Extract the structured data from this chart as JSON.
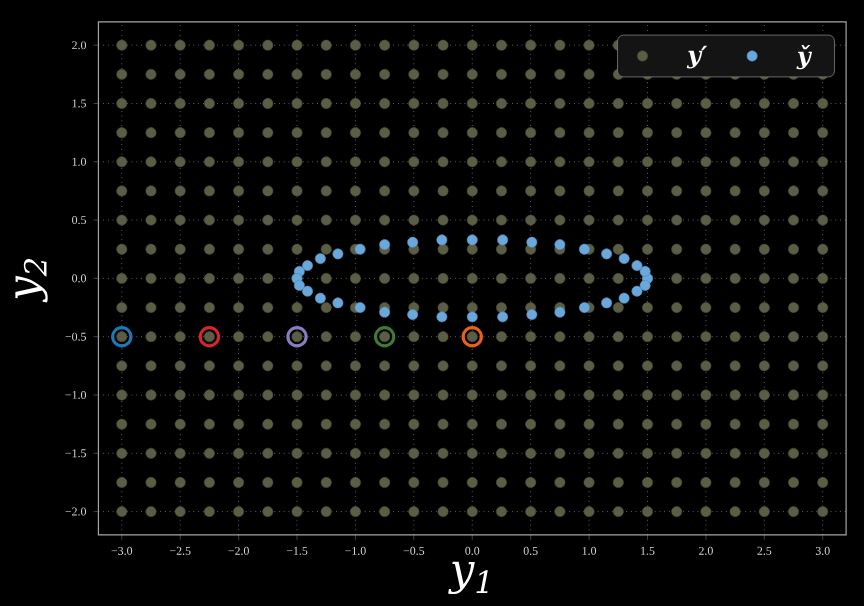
{
  "chart_data": {
    "type": "scatter",
    "xlabel": "y$_{1}$",
    "ylabel": "y$_{2}$",
    "xlim": [
      -3.2,
      3.2
    ],
    "ylim": [
      -2.2,
      2.2
    ],
    "xticks": [
      {
        "value": -3,
        "label": "−3.0"
      },
      {
        "value": -2.5,
        "label": "−2.5"
      },
      {
        "value": -2,
        "label": "−2.0"
      },
      {
        "value": -1.5,
        "label": "−1.5"
      },
      {
        "value": -1,
        "label": "−1.0"
      },
      {
        "value": -0.5,
        "label": "−0.5"
      },
      {
        "value": 0,
        "label": "0.0"
      },
      {
        "value": 0.5,
        "label": "0.5"
      },
      {
        "value": 1,
        "label": "1.0"
      },
      {
        "value": 1.5,
        "label": "1.5"
      },
      {
        "value": 2,
        "label": "2.0"
      },
      {
        "value": 2.5,
        "label": "2.5"
      },
      {
        "value": 3,
        "label": "3.0"
      }
    ],
    "yticks": [
      {
        "value": -2,
        "label": "−2.0"
      },
      {
        "value": -1.5,
        "label": "−1.5"
      },
      {
        "value": -1,
        "label": "−1.0"
      },
      {
        "value": -0.5,
        "label": "−0.5"
      },
      {
        "value": 0,
        "label": "0.0"
      },
      {
        "value": 0.5,
        "label": "0.5"
      },
      {
        "value": 1,
        "label": "1.0"
      },
      {
        "value": 1.5,
        "label": "1.5"
      },
      {
        "value": 2,
        "label": "2.0"
      }
    ],
    "grid": true,
    "legend": "top right",
    "marker": "circle",
    "series": [
      {
        "name": "y′",
        "color": "#5b5d45",
        "x": [
          -3,
          -2.75,
          -2.5,
          -2.25,
          -2,
          -1.75,
          -1.5,
          -1.25,
          -1,
          -0.75,
          -0.5,
          -0.25,
          0,
          0.25,
          0.5,
          0.75,
          1,
          1.25,
          -3,
          -2.75,
          -2.5,
          -2.25,
          -2,
          -1.75,
          -1.5,
          -1.25,
          -1,
          -0.75,
          -0.5,
          -0.25,
          0,
          0.25,
          0.5,
          0.75,
          1,
          1.25,
          1.5,
          1.75,
          2,
          2.25,
          2.5,
          2.75,
          3,
          -3,
          -2.75,
          -2.5,
          -2.25,
          -2,
          -1.75,
          -1.5,
          -1.25,
          -1,
          -0.75,
          -0.5,
          -0.25,
          0,
          0.25,
          0.5,
          0.75,
          1,
          1.25,
          1.5,
          1.75,
          2,
          2.25,
          2.5,
          2.75,
          3,
          -3,
          -2.75,
          -2.5,
          -2.25,
          -2,
          -1.75,
          -1.5,
          -1.25,
          -1,
          -0.75,
          -0.5,
          -0.25,
          0,
          0.25,
          0.5,
          0.75,
          1,
          1.25,
          1.5,
          1.75,
          2,
          2.25,
          2.5,
          2.75,
          3,
          -3,
          -2.75,
          -2.5,
          -2.25,
          -2,
          -1.75,
          -1.5,
          -1.25,
          -1,
          -0.75,
          -0.5,
          -0.25,
          0,
          0.25,
          0.5,
          0.75,
          1,
          1.25,
          1.5,
          1.75,
          2,
          2.25,
          2.5,
          2.75,
          3,
          -3,
          -2.75,
          -2.5,
          -2.25,
          -2,
          -1.75,
          -1.5,
          -1.25,
          -1,
          -0.75,
          -0.5,
          -0.25,
          0,
          0.25,
          0.5,
          0.75,
          1,
          1.25,
          1.5,
          1.75,
          2,
          2.25,
          2.5,
          2.75,
          3,
          -3,
          -2.75,
          -2.5,
          -2.25,
          -2,
          -1.75,
          -1.5,
          -1.25,
          -1,
          -0.75,
          -0.5,
          -0.25,
          0,
          0.25,
          0.5,
          0.75,
          1,
          1.25,
          1.5,
          1.75,
          2,
          2.25,
          2.5,
          2.75,
          3,
          -3,
          -2.75,
          -2.5,
          -2.25,
          -2,
          -1.75,
          -1.5,
          -1.25,
          -1,
          -0.75,
          -0.5,
          -0.25,
          0,
          0.25,
          0.5,
          0.75,
          1,
          1.25,
          1.5,
          1.75,
          2,
          2.25,
          2.5,
          2.75,
          3,
          -3,
          -2.75,
          -2.5,
          -2.25,
          -2,
          -1.75,
          -1.5,
          -1.25,
          -1,
          -0.75,
          -0.5,
          -0.25,
          0,
          0.25,
          0.5,
          0.75,
          1,
          1.25,
          1.5,
          1.75,
          2,
          2.25,
          2.5,
          2.75,
          3,
          -3,
          -2.75,
          -2.5,
          -2.25,
          -2,
          -1.75,
          -1.5,
          -1.25,
          -1,
          -0.75,
          -0.5,
          -0.25,
          0,
          0.25,
          0.5,
          0.75,
          1,
          1.25,
          1.5,
          1.75,
          2,
          2.25,
          2.5,
          2.75,
          3,
          -3,
          -2.75,
          -2.5,
          -2.25,
          -2,
          -1.75,
          -1.5,
          -1.25,
          -1,
          -0.75,
          -0.5,
          -0.25,
          0,
          0.25,
          0.5,
          0.75,
          1,
          1.25,
          1.5,
          1.75,
          2,
          2.25,
          2.5,
          2.75,
          3,
          -3,
          -2.75,
          -2.5,
          -2.25,
          -2,
          -1.75,
          -1.5,
          -1.25,
          -1,
          -0.75,
          -0.5,
          -0.25,
          0,
          0.25,
          0.5,
          0.75,
          1,
          1.25,
          1.5,
          1.75,
          2,
          2.25,
          2.5,
          2.75,
          3,
          -3,
          -2.75,
          -2.5,
          -2.25,
          -2,
          -1.75,
          -1.5,
          -1.25,
          -1,
          -0.75,
          -0.5,
          -0.25,
          0,
          0.25,
          0.5,
          0.75,
          1,
          1.25,
          1.5,
          1.75,
          2,
          2.25,
          2.5,
          2.75,
          3,
          -3,
          -2.75,
          -2.5,
          -2.25,
          -2,
          -1.75,
          -1.5,
          -1.25,
          -1,
          -0.75,
          -0.5,
          -0.25,
          0,
          0.25,
          0.5,
          0.75,
          1,
          1.25,
          1.5,
          1.75,
          2,
          2.25,
          2.5,
          2.75,
          3,
          -3,
          -2.75,
          -2.5,
          -2.25,
          -2,
          -1.75,
          -1.5,
          -1.25,
          -1,
          -0.75,
          -0.5,
          -0.25,
          0,
          0.25,
          0.5,
          0.75,
          1,
          1.25,
          1.5,
          1.75,
          2,
          2.25,
          2.5,
          2.75,
          3,
          -3,
          -2.75,
          -2.5,
          -2.25,
          -2,
          -1.75,
          -1.5,
          -1.25,
          -1,
          -0.75,
          -0.5,
          -0.25,
          0,
          0.25,
          0.5,
          0.75,
          1,
          1.25,
          1.5,
          1.75,
          2,
          2.25,
          2.5,
          2.75,
          3,
          -3,
          -2.75,
          -2.5,
          -2.25,
          -2,
          -1.75,
          -1.5,
          -1.25,
          -1,
          -0.75,
          -0.5,
          -0.25,
          0,
          0.25,
          0.5,
          0.75,
          1,
          1.25,
          1.5,
          1.75,
          2,
          2.25,
          2.5,
          2.75,
          3
        ],
        "values": [
          2,
          2,
          2,
          2,
          2,
          2,
          2,
          2,
          2,
          2,
          2,
          2,
          2,
          2,
          2,
          2,
          2,
          2,
          1.75,
          1.75,
          1.75,
          1.75,
          1.75,
          1.75,
          1.75,
          1.75,
          1.75,
          1.75,
          1.75,
          1.75,
          1.75,
          1.75,
          1.75,
          1.75,
          1.75,
          1.75,
          1.75,
          1.75,
          1.75,
          1.75,
          1.75,
          1.75,
          1.75,
          1.5,
          1.5,
          1.5,
          1.5,
          1.5,
          1.5,
          1.5,
          1.5,
          1.5,
          1.5,
          1.5,
          1.5,
          1.5,
          1.5,
          1.5,
          1.5,
          1.5,
          1.5,
          1.5,
          1.5,
          1.5,
          1.5,
          1.5,
          1.5,
          1.5,
          1.25,
          1.25,
          1.25,
          1.25,
          1.25,
          1.25,
          1.25,
          1.25,
          1.25,
          1.25,
          1.25,
          1.25,
          1.25,
          1.25,
          1.25,
          1.25,
          1.25,
          1.25,
          1.25,
          1.25,
          1.25,
          1.25,
          1.25,
          1.25,
          1.25,
          1,
          1,
          1,
          1,
          1,
          1,
          1,
          1,
          1,
          1,
          1,
          1,
          1,
          1,
          1,
          1,
          1,
          1,
          1,
          1,
          1,
          1,
          1,
          1,
          1,
          0.75,
          0.75,
          0.75,
          0.75,
          0.75,
          0.75,
          0.75,
          0.75,
          0.75,
          0.75,
          0.75,
          0.75,
          0.75,
          0.75,
          0.75,
          0.75,
          0.75,
          0.75,
          0.75,
          0.75,
          0.75,
          0.75,
          0.75,
          0.75,
          0.75,
          0.5,
          0.5,
          0.5,
          0.5,
          0.5,
          0.5,
          0.5,
          0.5,
          0.5,
          0.5,
          0.5,
          0.5,
          0.5,
          0.5,
          0.5,
          0.5,
          0.5,
          0.5,
          0.5,
          0.5,
          0.5,
          0.5,
          0.5,
          0.5,
          0.5,
          0.25,
          0.25,
          0.25,
          0.25,
          0.25,
          0.25,
          0.25,
          0.25,
          0.25,
          0.25,
          0.25,
          0.25,
          0.25,
          0.25,
          0.25,
          0.25,
          0.25,
          0.25,
          0.25,
          0.25,
          0.25,
          0.25,
          0.25,
          0.25,
          0.25,
          0,
          0,
          0,
          0,
          0,
          0,
          0,
          0,
          0,
          0,
          0,
          0,
          0,
          0,
          0,
          0,
          0,
          0,
          0,
          0,
          0,
          0,
          0,
          0,
          0,
          -0.25,
          -0.25,
          -0.25,
          -0.25,
          -0.25,
          -0.25,
          -0.25,
          -0.25,
          -0.25,
          -0.25,
          -0.25,
          -0.25,
          -0.25,
          -0.25,
          -0.25,
          -0.25,
          -0.25,
          -0.25,
          -0.25,
          -0.25,
          -0.25,
          -0.25,
          -0.25,
          -0.25,
          -0.25,
          -0.5,
          -0.5,
          -0.5,
          -0.5,
          -0.5,
          -0.5,
          -0.5,
          -0.5,
          -0.5,
          -0.5,
          -0.5,
          -0.5,
          -0.5,
          -0.5,
          -0.5,
          -0.5,
          -0.5,
          -0.5,
          -0.5,
          -0.5,
          -0.5,
          -0.5,
          -0.5,
          -0.5,
          -0.5,
          -0.75,
          -0.75,
          -0.75,
          -0.75,
          -0.75,
          -0.75,
          -0.75,
          -0.75,
          -0.75,
          -0.75,
          -0.75,
          -0.75,
          -0.75,
          -0.75,
          -0.75,
          -0.75,
          -0.75,
          -0.75,
          -0.75,
          -0.75,
          -0.75,
          -0.75,
          -0.75,
          -0.75,
          -0.75,
          -1,
          -1,
          -1,
          -1,
          -1,
          -1,
          -1,
          -1,
          -1,
          -1,
          -1,
          -1,
          -1,
          -1,
          -1,
          -1,
          -1,
          -1,
          -1,
          -1,
          -1,
          -1,
          -1,
          -1,
          -1,
          -1.25,
          -1.25,
          -1.25,
          -1.25,
          -1.25,
          -1.25,
          -1.25,
          -1.25,
          -1.25,
          -1.25,
          -1.25,
          -1.25,
          -1.25,
          -1.25,
          -1.25,
          -1.25,
          -1.25,
          -1.25,
          -1.25,
          -1.25,
          -1.25,
          -1.25,
          -1.25,
          -1.25,
          -1.25,
          -1.5,
          -1.5,
          -1.5,
          -1.5,
          -1.5,
          -1.5,
          -1.5,
          -1.5,
          -1.5,
          -1.5,
          -1.5,
          -1.5,
          -1.5,
          -1.5,
          -1.5,
          -1.5,
          -1.5,
          -1.5,
          -1.5,
          -1.5,
          -1.5,
          -1.5,
          -1.5,
          -1.5,
          -1.5,
          -1.75,
          -1.75,
          -1.75,
          -1.75,
          -1.75,
          -1.75,
          -1.75,
          -1.75,
          -1.75,
          -1.75,
          -1.75,
          -1.75,
          -1.75,
          -1.75,
          -1.75,
          -1.75,
          -1.75,
          -1.75,
          -1.75,
          -1.75,
          -1.75,
          -1.75,
          -1.75,
          -1.75,
          -1.75,
          -2,
          -2,
          -2,
          -2,
          -2,
          -2,
          -2,
          -2,
          -2,
          -2,
          -2,
          -2,
          -2,
          -2,
          -2,
          -2,
          -2,
          -2,
          -2,
          -2,
          -2,
          -2,
          -2,
          -2,
          -2
        ]
      },
      {
        "name": "y̌",
        "color": "#6aa8dc",
        "x": [
          1.5,
          1.48,
          1.41,
          1.3,
          1.15,
          0.96,
          0.75,
          0.51,
          0.26,
          0,
          -0.26,
          -0.51,
          -0.75,
          -0.96,
          -1.15,
          -1.3,
          -1.41,
          -1.48,
          -1.5,
          -1.48,
          -1.41,
          -1.3,
          -1.15,
          -0.96,
          -0.75,
          -0.51,
          -0.26,
          0,
          0.26,
          0.51,
          0.75,
          0.96,
          1.15,
          1.3,
          1.41,
          1.48
        ],
        "values": [
          0,
          0.06,
          0.11,
          0.17,
          0.21,
          0.25,
          0.29,
          0.31,
          0.33,
          0.33,
          0.33,
          0.31,
          0.29,
          0.25,
          0.21,
          0.17,
          0.11,
          0.06,
          0,
          -0.06,
          -0.11,
          -0.17,
          -0.21,
          -0.25,
          -0.29,
          -0.31,
          -0.33,
          -0.33,
          -0.33,
          -0.31,
          -0.29,
          -0.25,
          -0.21,
          -0.17,
          -0.11,
          -0.06
        ]
      },
      {
        "colors": [
          "#1f77b4",
          "#d62728",
          "#8a7cc0",
          "#3f7a32",
          "#e8601c"
        ],
        "x": [
          -3,
          -2.25,
          -1.5,
          -0.75,
          0
        ],
        "values": [
          -0.5,
          -0.5,
          -0.5,
          -0.5,
          -0.5
        ]
      }
    ]
  }
}
